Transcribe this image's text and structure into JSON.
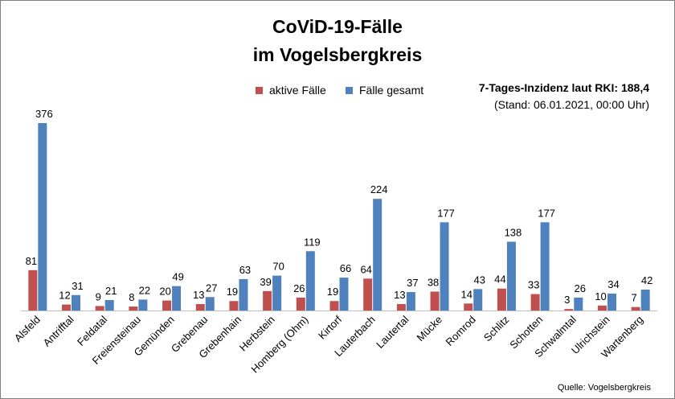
{
  "chart_data": {
    "type": "bar",
    "title": "CoViD-19-Fälle",
    "subtitle": "im Vogelsbergkreis",
    "categories": [
      "Alsfeld",
      "Antrifftal",
      "Feldatal",
      "Freiensteinau",
      "Gemünden",
      "Grebenau",
      "Grebenhain",
      "Herbstein",
      "Homberg (Ohm)",
      "Kirtorf",
      "Lauterbach",
      "Lautertal",
      "Mücke",
      "Romrod",
      "Schlitz",
      "Schotten",
      "Schwalmtal",
      "Ulrichstein",
      "Wartenberg"
    ],
    "series": [
      {
        "name": "aktive Fälle",
        "color": "#c0504d",
        "values": [
          81,
          12,
          9,
          8,
          20,
          13,
          19,
          39,
          26,
          19,
          64,
          13,
          38,
          14,
          44,
          33,
          3,
          10,
          7
        ]
      },
      {
        "name": "Fälle gesamt",
        "color": "#4f81bd",
        "values": [
          376,
          31,
          21,
          22,
          49,
          27,
          63,
          70,
          119,
          66,
          224,
          37,
          177,
          43,
          138,
          177,
          26,
          34,
          42
        ]
      }
    ],
    "ylim": [
      0,
      400
    ],
    "grid": false,
    "legend": "top"
  },
  "info": {
    "incidence": "7-Tages-Inzidenz laut RKI: 188,4",
    "stand": "(Stand: 06.01.2021, 00:00 Uhr)"
  },
  "source": "Quelle: Vogelsbergkreis"
}
